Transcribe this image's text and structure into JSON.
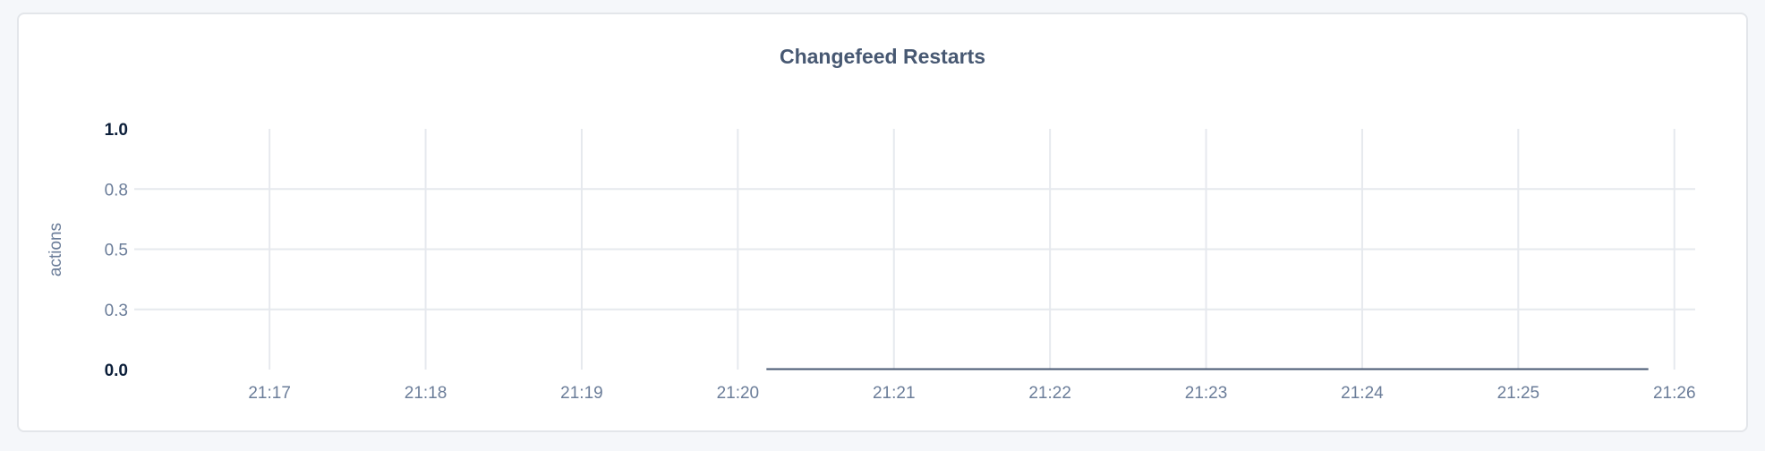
{
  "chart_data": {
    "type": "line",
    "title": "Changefeed Restarts",
    "ylabel": "actions",
    "xlabel": "",
    "ylim": [
      0,
      1
    ],
    "yticks": [
      {
        "value": 0,
        "label": "0.0",
        "bold": true
      },
      {
        "value": 0.25,
        "label": "0.3",
        "bold": false
      },
      {
        "value": 0.5,
        "label": "0.5",
        "bold": false
      },
      {
        "value": 0.75,
        "label": "0.8",
        "bold": false
      },
      {
        "value": 1,
        "label": "1.0",
        "bold": true
      }
    ],
    "xlim": [
      "21:16:08",
      "21:26:08"
    ],
    "xticks": [
      "21:17",
      "21:18",
      "21:19",
      "21:20",
      "21:21",
      "21:22",
      "21:23",
      "21:24",
      "21:25",
      "21:26"
    ],
    "grid": true,
    "series": [
      {
        "color": "#475872",
        "x": [
          "21:20:11",
          "21:25:50"
        ],
        "values": [
          0,
          0
        ]
      }
    ]
  }
}
